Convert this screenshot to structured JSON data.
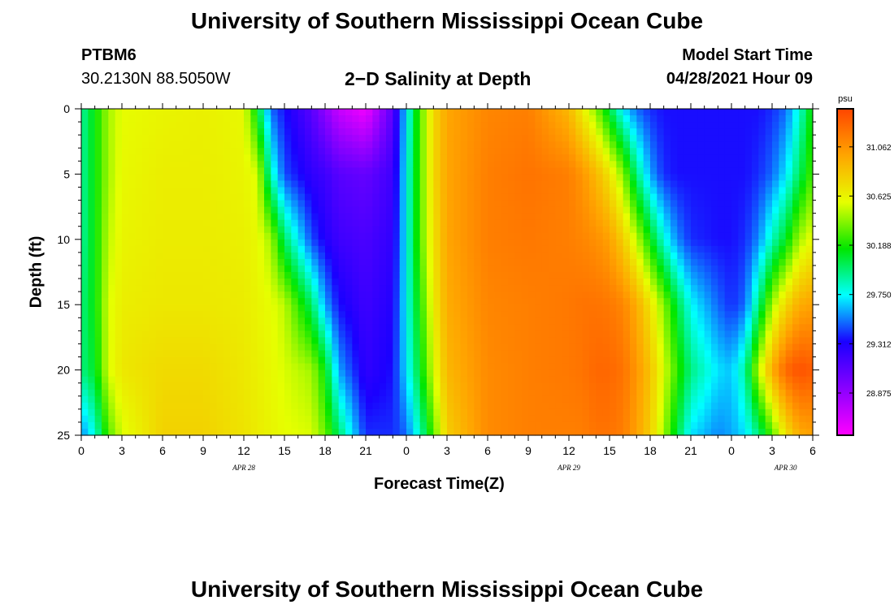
{
  "header": {
    "title": "University of Southern Mississippi Ocean Cube",
    "station_id": "PTBM6",
    "station_coords": "30.2130N  88.5050W",
    "plot_title": "2−D Salinity at Depth",
    "model_start_label": "Model Start Time",
    "model_start_value": "04/28/2021 Hour 09"
  },
  "footer": {
    "title": "University of Southern Mississippi Ocean Cube"
  },
  "chart_data": {
    "type": "heatmap",
    "title": "2−D Salinity at Depth",
    "xlabel": "Forecast Time(Z)",
    "ylabel": "Depth (ft)",
    "x_tick_labels": [
      "0",
      "3",
      "6",
      "9",
      "12",
      "15",
      "18",
      "21",
      "0",
      "3",
      "6",
      "9",
      "12",
      "15",
      "18",
      "21",
      "0",
      "3",
      "6"
    ],
    "x_range_hours": [
      0,
      54
    ],
    "date_labels": [
      {
        "label": "APR 28",
        "hour": 12
      },
      {
        "label": "APR 29",
        "hour": 36
      },
      {
        "label": "APR 30",
        "hour": 52
      }
    ],
    "y_tick_labels": [
      "0",
      "5",
      "10",
      "15",
      "20",
      "25"
    ],
    "y_range_ft": [
      0,
      25
    ],
    "y_inverted": true,
    "colorbar": {
      "unit": "psu",
      "ticks": [
        "31.062",
        "30.625",
        "30.188",
        "29.750",
        "29.312",
        "28.875"
      ],
      "range": [
        28.5,
        31.4
      ],
      "colors": [
        "#ff00ff",
        "#8a00ff",
        "#1a00ff",
        "#00ffff",
        "#00e600",
        "#e6ff00",
        "#ffa500",
        "#ff4500"
      ]
    },
    "profiles": [
      {
        "hour": 0,
        "values": [
          29.9,
          29.9,
          29.9,
          29.95,
          29.95,
          29.55
        ]
      },
      {
        "hour": 1,
        "values": [
          30.15,
          30.15,
          30.15,
          30.15,
          30.1,
          29.8
        ]
      },
      {
        "hour": 2,
        "values": [
          30.45,
          30.45,
          30.5,
          30.55,
          30.55,
          30.3
        ]
      },
      {
        "hour": 3,
        "values": [
          30.58,
          30.6,
          30.62,
          30.65,
          30.68,
          30.55
        ]
      },
      {
        "hour": 6,
        "values": [
          30.62,
          30.65,
          30.66,
          30.68,
          30.74,
          30.78
        ]
      },
      {
        "hour": 9,
        "values": [
          30.64,
          30.65,
          30.66,
          30.68,
          30.74,
          30.78
        ]
      },
      {
        "hour": 12,
        "values": [
          30.6,
          30.62,
          30.64,
          30.66,
          30.68,
          30.7
        ]
      },
      {
        "hour": 13,
        "values": [
          30.1,
          30.55,
          30.6,
          30.62,
          30.64,
          30.66
        ]
      },
      {
        "hour": 14,
        "values": [
          29.5,
          29.85,
          30.45,
          30.58,
          30.6,
          30.62
        ]
      },
      {
        "hour": 15,
        "values": [
          29.35,
          29.45,
          30.0,
          30.5,
          30.55,
          30.58
        ]
      },
      {
        "hour": 17,
        "values": [
          29.1,
          29.25,
          29.45,
          30.0,
          30.45,
          30.55
        ]
      },
      {
        "hour": 18,
        "values": [
          28.9,
          29.2,
          29.3,
          29.6,
          30.15,
          30.35
        ]
      },
      {
        "hour": 19,
        "values": [
          28.7,
          29.1,
          29.2,
          29.35,
          29.6,
          30.0
        ]
      },
      {
        "hour": 21,
        "values": [
          28.55,
          29.05,
          29.15,
          29.2,
          29.25,
          29.4
        ]
      },
      {
        "hour": 23,
        "values": [
          29.1,
          29.2,
          29.25,
          29.3,
          29.35,
          29.4
        ]
      },
      {
        "hour": 24,
        "values": [
          29.7,
          29.75,
          29.75,
          29.75,
          29.7,
          29.5
        ]
      },
      {
        "hour": 25,
        "values": [
          30.3,
          30.3,
          30.3,
          30.2,
          30.1,
          29.85
        ]
      },
      {
        "hour": 26,
        "values": [
          30.75,
          30.75,
          30.7,
          30.65,
          30.55,
          30.3
        ]
      },
      {
        "hour": 27,
        "values": [
          30.98,
          30.98,
          30.98,
          30.95,
          30.9,
          30.8
        ]
      },
      {
        "hour": 30,
        "values": [
          31.12,
          31.15,
          31.15,
          31.12,
          31.1,
          31.1
        ]
      },
      {
        "hour": 33,
        "values": [
          31.15,
          31.2,
          31.18,
          31.15,
          31.15,
          31.15
        ]
      },
      {
        "hour": 36,
        "values": [
          30.9,
          31.15,
          31.15,
          31.18,
          31.18,
          31.15
        ]
      },
      {
        "hour": 37,
        "values": [
          30.65,
          31.05,
          31.12,
          31.2,
          31.2,
          31.15
        ]
      },
      {
        "hour": 38,
        "values": [
          30.4,
          30.9,
          31.08,
          31.2,
          31.25,
          31.2
        ]
      },
      {
        "hour": 39,
        "values": [
          30.05,
          30.7,
          31.0,
          31.18,
          31.25,
          31.2
        ]
      },
      {
        "hour": 40,
        "values": [
          29.7,
          30.4,
          30.8,
          31.12,
          31.2,
          31.15
        ]
      },
      {
        "hour": 41,
        "values": [
          29.5,
          29.95,
          30.5,
          30.95,
          31.05,
          31.0
        ]
      },
      {
        "hour": 42,
        "values": [
          29.4,
          29.6,
          30.15,
          30.7,
          30.85,
          30.8
        ]
      },
      {
        "hour": 43,
        "values": [
          29.35,
          29.4,
          29.8,
          30.4,
          30.55,
          30.45
        ]
      },
      {
        "hour": 44,
        "values": [
          29.35,
          29.35,
          29.55,
          30.05,
          30.25,
          30.05
        ]
      },
      {
        "hour": 45,
        "values": [
          29.35,
          29.35,
          29.4,
          29.75,
          29.95,
          29.7
        ]
      },
      {
        "hour": 47,
        "values": [
          29.35,
          29.35,
          29.35,
          29.5,
          29.7,
          29.55
        ]
      },
      {
        "hour": 48,
        "values": [
          29.35,
          29.35,
          29.35,
          29.4,
          29.65,
          29.6
        ]
      },
      {
        "hour": 49,
        "values": [
          29.35,
          29.35,
          29.4,
          29.5,
          29.9,
          29.7
        ]
      },
      {
        "hour": 50,
        "values": [
          29.35,
          29.4,
          29.55,
          29.95,
          30.5,
          29.95
        ]
      },
      {
        "hour": 51,
        "values": [
          29.4,
          29.5,
          29.85,
          30.45,
          30.95,
          30.3
        ]
      },
      {
        "hour": 52,
        "values": [
          29.5,
          29.7,
          30.1,
          30.75,
          31.25,
          30.7
        ]
      },
      {
        "hour": 53,
        "values": [
          29.8,
          30.0,
          30.45,
          30.95,
          31.35,
          30.95
        ]
      },
      {
        "hour": 54,
        "values": [
          30.2,
          30.3,
          30.6,
          31.0,
          31.3,
          31.0
        ]
      }
    ]
  }
}
